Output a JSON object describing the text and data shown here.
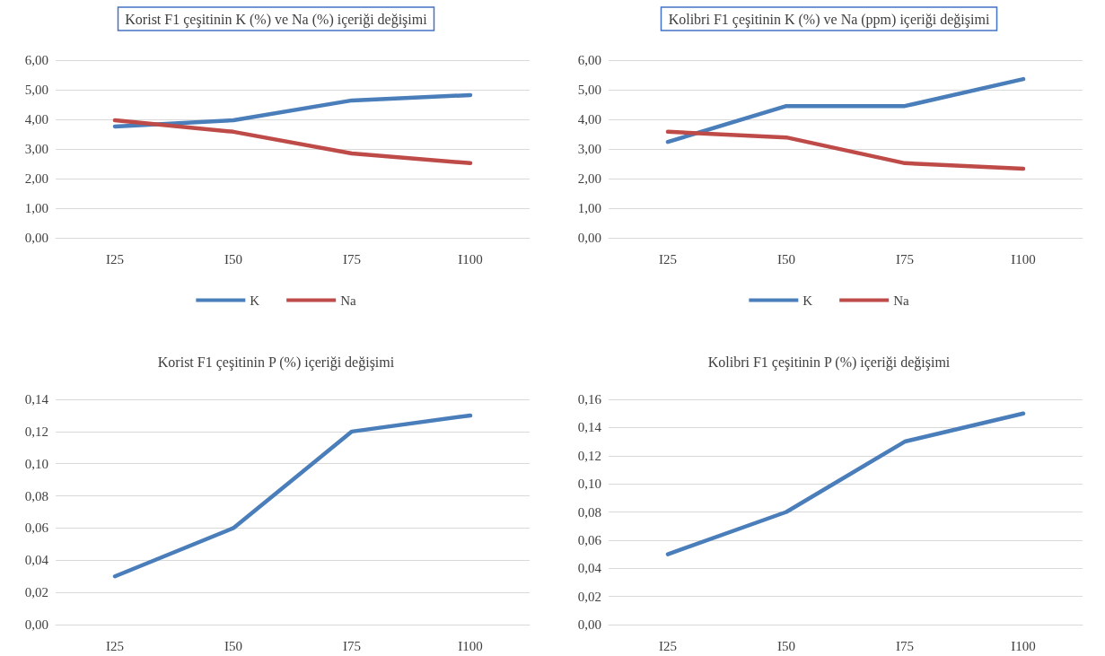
{
  "chart_data": [
    {
      "type": "line",
      "title": "Korist F1 çeşitinin K (%) ve Na (%) içeriği değişimi",
      "categories": [
        "I25",
        "I50",
        "I75",
        "I100"
      ],
      "series": [
        {
          "name": "K",
          "color": "#4a7ebb",
          "values": [
            3.76,
            3.97,
            4.64,
            4.82
          ]
        },
        {
          "name": "Na",
          "color": "#be4b48",
          "values": [
            3.97,
            3.58,
            2.85,
            2.52
          ]
        }
      ],
      "ylim": [
        0,
        6
      ],
      "yticks": [
        {
          "value": 0,
          "label": "0,00"
        },
        {
          "value": 1,
          "label": "1,00"
        },
        {
          "value": 2,
          "label": "2,00"
        },
        {
          "value": 3,
          "label": "3,00"
        },
        {
          "value": 4,
          "label": "4,00"
        },
        {
          "value": 5,
          "label": "5,00"
        },
        {
          "value": 6,
          "label": "6,00"
        }
      ],
      "grid": "y",
      "legend": "bottom",
      "marker": "none"
    },
    {
      "type": "line",
      "title": "Kolibri F1 çeşitinin K (%) ve Na (ppm) içeriği değişimi",
      "categories": [
        "I25",
        "I50",
        "I75",
        "I100"
      ],
      "series": [
        {
          "name": "K",
          "color": "#4a7ebb",
          "values": [
            3.24,
            4.45,
            4.45,
            5.36
          ]
        },
        {
          "name": "Na",
          "color": "#be4b48",
          "values": [
            3.58,
            3.39,
            2.52,
            2.33
          ]
        }
      ],
      "ylim": [
        0,
        6
      ],
      "yticks": [
        {
          "value": 0,
          "label": "0,00"
        },
        {
          "value": 1,
          "label": "1,00"
        },
        {
          "value": 2,
          "label": "2,00"
        },
        {
          "value": 3,
          "label": "3,00"
        },
        {
          "value": 4,
          "label": "4,00"
        },
        {
          "value": 5,
          "label": "5,00"
        },
        {
          "value": 6,
          "label": "6,00"
        }
      ],
      "grid": "y",
      "legend": "bottom",
      "marker": "none"
    },
    {
      "type": "line",
      "title": "Korist F1 çeşitinin P (%) içeriği değişimi",
      "categories": [
        "I25",
        "I50",
        "I75",
        "I100"
      ],
      "series": [
        {
          "color": "#4a7ebb",
          "values": [
            0.03,
            0.06,
            0.12,
            0.13
          ]
        }
      ],
      "ylim": [
        0,
        0.14
      ],
      "yticks": [
        {
          "value": 0,
          "label": "0,00"
        },
        {
          "value": 0.02,
          "label": "0,02"
        },
        {
          "value": 0.04,
          "label": "0,04"
        },
        {
          "value": 0.06,
          "label": "0,06"
        },
        {
          "value": 0.08,
          "label": "0,08"
        },
        {
          "value": 0.1,
          "label": "0,10"
        },
        {
          "value": 0.12,
          "label": "0,12"
        },
        {
          "value": 0.14,
          "label": "0,14"
        }
      ],
      "grid": "y",
      "marker": "none"
    },
    {
      "type": "line",
      "title": "Kolibri F1 çeşitinin P (%) içeriği değişimi",
      "categories": [
        "I25",
        "I50",
        "I75",
        "I100"
      ],
      "series": [
        {
          "color": "#4a7ebb",
          "values": [
            0.05,
            0.08,
            0.13,
            0.15
          ]
        }
      ],
      "ylim": [
        0,
        0.16
      ],
      "yticks": [
        {
          "value": 0,
          "label": "0,00"
        },
        {
          "value": 0.02,
          "label": "0,02"
        },
        {
          "value": 0.04,
          "label": "0,04"
        },
        {
          "value": 0.06,
          "label": "0,06"
        },
        {
          "value": 0.08,
          "label": "0,08"
        },
        {
          "value": 0.1,
          "label": "0,10"
        },
        {
          "value": 0.12,
          "label": "0,12"
        },
        {
          "value": 0.14,
          "label": "0,14"
        },
        {
          "value": 0.16,
          "label": "0,16"
        }
      ],
      "grid": "y",
      "marker": "none"
    }
  ]
}
